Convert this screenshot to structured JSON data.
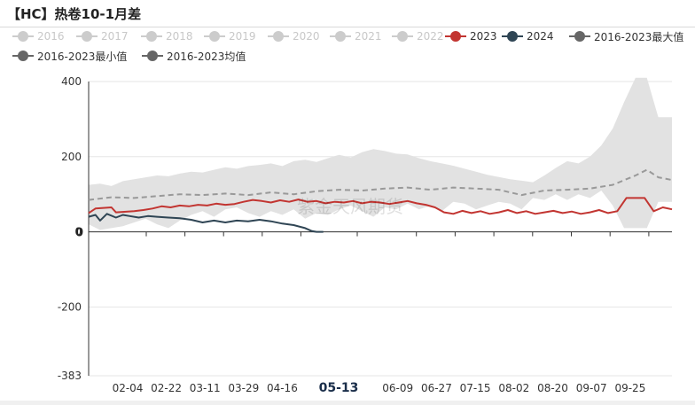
{
  "title": "【HC】热卷10-1月差",
  "legend": [
    {
      "label": "2016",
      "color": "#cccccc",
      "active": false
    },
    {
      "label": "2017",
      "color": "#cccccc",
      "active": false
    },
    {
      "label": "2018",
      "color": "#cccccc",
      "active": false
    },
    {
      "label": "2019",
      "color": "#cccccc",
      "active": false
    },
    {
      "label": "2020",
      "color": "#cccccc",
      "active": false
    },
    {
      "label": "2021",
      "color": "#cccccc",
      "active": false
    },
    {
      "label": "2022",
      "color": "#cccccc",
      "active": false
    },
    {
      "label": "2023",
      "color": "#c23531",
      "active": true
    },
    {
      "label": "2024",
      "color": "#2f4554",
      "active": true
    },
    {
      "label": "2016-2023最大值",
      "color": "#666666",
      "active": true
    },
    {
      "label": "2016-2023最小值",
      "color": "#666666",
      "active": true
    },
    {
      "label": "2016-2023均值",
      "color": "#666666",
      "active": true
    }
  ],
  "watermark": "紫金天风期货",
  "chart_data": {
    "type": "line",
    "title": "【HC】热卷10-1月差",
    "xlabel": "",
    "ylabel": "",
    "ylim": [
      -383,
      400
    ],
    "y_ticks": [
      400,
      200,
      0,
      -200,
      -383
    ],
    "x_tick_labels": [
      "02-04",
      "02-22",
      "03-11",
      "03-29",
      "04-16",
      "05-13",
      "06-09",
      "06-27",
      "07-15",
      "08-02",
      "08-20",
      "09-07",
      "09-25"
    ],
    "highlighted_x_label": "05-13",
    "grid": true,
    "legend_position": "top",
    "x_range": [
      0,
      256
    ],
    "band": {
      "name_upper": "2016-2023最大值",
      "name_lower": "2016-2023最小值",
      "x": [
        0,
        5,
        10,
        15,
        20,
        25,
        30,
        35,
        40,
        45,
        50,
        55,
        60,
        65,
        70,
        75,
        80,
        85,
        90,
        95,
        100,
        105,
        110,
        115,
        120,
        125,
        130,
        135,
        140,
        145,
        150,
        155,
        160,
        165,
        170,
        175,
        180,
        185,
        190,
        195,
        200,
        205,
        210,
        215,
        220,
        225,
        230,
        235,
        240,
        245,
        250,
        256
      ],
      "upper": [
        125,
        128,
        122,
        135,
        140,
        145,
        150,
        148,
        155,
        160,
        158,
        165,
        172,
        168,
        175,
        178,
        182,
        175,
        188,
        192,
        186,
        196,
        205,
        198,
        212,
        220,
        215,
        208,
        206,
        196,
        188,
        182,
        176,
        168,
        160,
        152,
        146,
        140,
        136,
        132,
        150,
        170,
        188,
        182,
        200,
        230,
        275,
        345,
        410,
        410,
        305,
        305
      ],
      "lower": [
        20,
        5,
        10,
        15,
        25,
        35,
        20,
        10,
        30,
        45,
        55,
        40,
        60,
        65,
        50,
        40,
        55,
        45,
        60,
        35,
        50,
        45,
        60,
        70,
        55,
        40,
        65,
        60,
        75,
        60,
        70,
        55,
        80,
        75,
        60,
        70,
        80,
        75,
        60,
        90,
        85,
        100,
        85,
        100,
        90,
        110,
        70,
        10,
        10,
        10,
        80,
        80
      ]
    },
    "series": [
      {
        "name": "2016-2023均值",
        "color": "#999999",
        "dashed": true,
        "x": [
          0,
          10,
          20,
          30,
          40,
          50,
          60,
          70,
          80,
          90,
          100,
          110,
          120,
          130,
          140,
          150,
          160,
          170,
          180,
          190,
          200,
          210,
          220,
          230,
          240,
          245,
          250,
          256
        ],
        "y": [
          85,
          92,
          90,
          95,
          100,
          98,
          102,
          98,
          105,
          100,
          108,
          112,
          110,
          115,
          118,
          112,
          118,
          115,
          112,
          98,
          110,
          112,
          115,
          125,
          150,
          165,
          145,
          138
        ]
      },
      {
        "name": "2023",
        "color": "#c23531",
        "dashed": false,
        "x": [
          0,
          3,
          10,
          12,
          20,
          24,
          28,
          32,
          36,
          40,
          44,
          48,
          52,
          56,
          60,
          64,
          68,
          72,
          76,
          80,
          84,
          88,
          92,
          96,
          100,
          104,
          108,
          112,
          116,
          120,
          124,
          128,
          132,
          136,
          140,
          144,
          148,
          152,
          156,
          160,
          164,
          168,
          172,
          176,
          180,
          184,
          188,
          192,
          196,
          200,
          204,
          208,
          212,
          216,
          220,
          224,
          228,
          232,
          236,
          240,
          244,
          248,
          252,
          256
        ],
        "y": [
          50,
          62,
          65,
          52,
          55,
          58,
          62,
          68,
          65,
          70,
          68,
          72,
          70,
          75,
          72,
          74,
          80,
          85,
          82,
          78,
          84,
          80,
          86,
          80,
          82,
          76,
          80,
          78,
          82,
          76,
          80,
          78,
          74,
          78,
          82,
          76,
          72,
          65,
          52,
          48,
          56,
          50,
          55,
          48,
          52,
          58,
          50,
          55,
          48,
          52,
          56,
          50,
          54,
          48,
          52,
          58,
          50,
          55,
          90,
          90,
          90,
          55,
          65,
          60
        ]
      },
      {
        "name": "2024",
        "color": "#2f4554",
        "dashed": false,
        "x": [
          0,
          3,
          5,
          8,
          12,
          15,
          18,
          22,
          26,
          30,
          35,
          40,
          45,
          50,
          55,
          60,
          65,
          70,
          75,
          80,
          85,
          90,
          95,
          98,
          100,
          103
        ],
        "y": [
          40,
          45,
          30,
          48,
          38,
          45,
          42,
          38,
          42,
          40,
          38,
          36,
          32,
          25,
          30,
          25,
          30,
          28,
          32,
          28,
          22,
          18,
          10,
          2,
          0,
          0
        ]
      }
    ]
  }
}
